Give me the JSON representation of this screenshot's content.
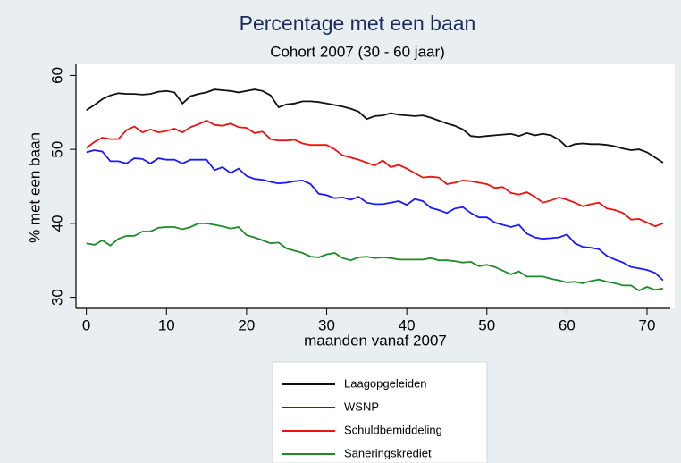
{
  "chart_data": {
    "type": "line",
    "title": "Percentage met een baan",
    "subtitle": "Cohort 2007 (30 - 60 jaar)",
    "x_label": "maanden vanaf 2007",
    "y_label": "% met een baan",
    "x": [
      0,
      1,
      2,
      3,
      4,
      5,
      6,
      7,
      8,
      9,
      10,
      11,
      12,
      13,
      14,
      15,
      16,
      17,
      18,
      19,
      20,
      21,
      22,
      23,
      24,
      25,
      26,
      27,
      28,
      29,
      30,
      31,
      32,
      33,
      34,
      35,
      36,
      37,
      38,
      39,
      40,
      41,
      42,
      43,
      44,
      45,
      46,
      47,
      48,
      49,
      50,
      51,
      52,
      53,
      54,
      55,
      56,
      57,
      58,
      59,
      60,
      61,
      62,
      63,
      64,
      65,
      66,
      67,
      68,
      69,
      70,
      71,
      72
    ],
    "xlim": [
      -1.3,
      72.9
    ],
    "xticks": [
      0,
      10,
      20,
      30,
      40,
      50,
      60,
      70
    ],
    "ylim": [
      28.5,
      61.5
    ],
    "yticks": [
      30,
      40,
      50,
      60
    ],
    "grid": false,
    "legend_position": "bottom",
    "series": [
      {
        "name": "Laagopgeleiden",
        "color": "#111111",
        "values": [
          55.3,
          56,
          56.8,
          57.3,
          57.6,
          57.5,
          57.5,
          57.4,
          57.5,
          57.8,
          57.9,
          57.7,
          56.2,
          57.2,
          57.5,
          57.7,
          58.1,
          58,
          57.9,
          57.7,
          57.9,
          58.1,
          57.9,
          57.3,
          55.7,
          56.1,
          56.2,
          56.5,
          56.5,
          56.4,
          56.2,
          56,
          55.8,
          55.5,
          55.1,
          54.1,
          54.5,
          54.6,
          54.9,
          54.7,
          54.6,
          54.5,
          54.6,
          54.3,
          53.9,
          53.5,
          53.2,
          52.7,
          51.8,
          51.7,
          51.8,
          51.9,
          52,
          52.1,
          51.8,
          52.2,
          51.9,
          52.1,
          51.9,
          51.3,
          50.3,
          50.7,
          50.8,
          50.7,
          50.7,
          50.6,
          50.4,
          50.1,
          49.9,
          50,
          49.6,
          48.9,
          48.2
        ]
      },
      {
        "name": "WSNP",
        "color": "#1a1aff",
        "values": [
          49.6,
          49.9,
          49.7,
          48.4,
          48.4,
          48.1,
          48.8,
          48.7,
          48.1,
          48.8,
          48.6,
          48.6,
          48.1,
          48.6,
          48.6,
          48.6,
          47.2,
          47.6,
          46.8,
          47.4,
          46.4,
          46,
          45.9,
          45.6,
          45.4,
          45.5,
          45.7,
          45.8,
          45.3,
          44,
          43.8,
          43.4,
          43.5,
          43.2,
          43.6,
          42.8,
          42.6,
          42.6,
          42.8,
          43,
          42.5,
          43.3,
          43,
          42.1,
          41.8,
          41.4,
          42,
          42.2,
          41.4,
          40.8,
          40.8,
          40.1,
          39.8,
          39.5,
          39.8,
          38.6,
          38.1,
          37.9,
          38,
          38.1,
          38.5,
          37.3,
          36.8,
          36.7,
          36.5,
          35.6,
          35.1,
          34.7,
          34.1,
          33.9,
          33.7,
          33.3,
          32.3
        ]
      },
      {
        "name": "Schuldbemiddeling",
        "color": "#ee1111",
        "values": [
          50.2,
          51,
          51.6,
          51.4,
          51.4,
          52.6,
          53.1,
          52.3,
          52.7,
          52.3,
          52.5,
          52.8,
          52.3,
          53,
          53.4,
          53.9,
          53.3,
          53.2,
          53.5,
          53,
          52.9,
          52.2,
          52.4,
          51.4,
          51.2,
          51.2,
          51.3,
          50.8,
          50.6,
          50.6,
          50.6,
          50,
          49.2,
          48.9,
          48.6,
          48.2,
          47.8,
          48.5,
          47.6,
          47.9,
          47.4,
          46.8,
          46.2,
          46.3,
          46.2,
          45.3,
          45.5,
          45.8,
          45.7,
          45.5,
          45.3,
          44.8,
          44.9,
          44.1,
          43.9,
          44.2,
          43.6,
          42.8,
          43.1,
          43.5,
          43.2,
          42.8,
          42.3,
          42.6,
          42.8,
          42,
          41.8,
          41.4,
          40.5,
          40.6,
          40.1,
          39.6,
          40
        ]
      },
      {
        "name": "Saneringskrediet",
        "color": "#1e8a2a",
        "values": [
          37.3,
          37.1,
          37.7,
          37,
          37.9,
          38.3,
          38.3,
          38.9,
          38.9,
          39.4,
          39.5,
          39.5,
          39.2,
          39.5,
          40,
          40,
          39.8,
          39.6,
          39.3,
          39.5,
          38.4,
          38.1,
          37.7,
          37.3,
          37.4,
          36.6,
          36.3,
          36,
          35.5,
          35.4,
          35.8,
          36,
          35.3,
          35,
          35.4,
          35.5,
          35.3,
          35.4,
          35.3,
          35.1,
          35.1,
          35.1,
          35.1,
          35.3,
          35,
          35,
          34.9,
          34.7,
          34.8,
          34.2,
          34.4,
          34.1,
          33.6,
          33.1,
          33.5,
          32.8,
          32.8,
          32.8,
          32.5,
          32.3,
          32,
          32.1,
          31.9,
          32.2,
          32.4,
          32.1,
          31.9,
          31.6,
          31.6,
          30.9,
          31.4,
          31,
          31.2
        ]
      }
    ]
  }
}
